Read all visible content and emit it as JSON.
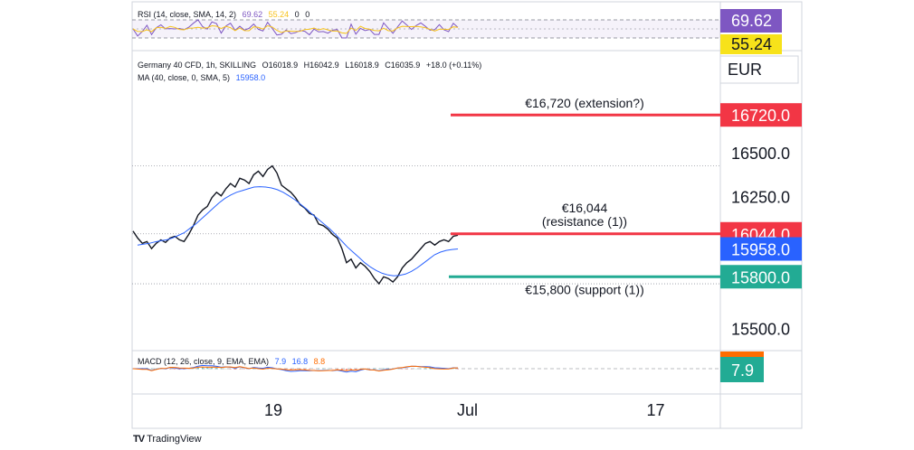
{
  "symbol_legend": {
    "symbol": "Germany 40 CFD, 1h, SKILLING",
    "o": "O16018.9",
    "h": "H16042.9",
    "l": "L16018.9",
    "c": "C16035.9",
    "chg": "+18.0 (+0.11%)",
    "ma": "MA (40, close, 0, SMA, 5)",
    "ma_val": "15958.0"
  },
  "rsi_pane": {
    "legend": "RSI (14, close, SMA, 14, 2)",
    "v1": "69.62",
    "v2": "55.24",
    "v3": "0",
    "v4": "0",
    "badge1": "69.62",
    "badge2": "55.24"
  },
  "macd_pane": {
    "legend": "MACD (12, 26, close, 9, EMA, EMA)",
    "v1": "7.9",
    "v2": "16.8",
    "v3": "8.8",
    "badge": "7.9"
  },
  "currency": "EUR",
  "brand": "TradingView",
  "brand_mark": "TV",
  "colors": {
    "up": "#131722",
    "ma": "#2962ff",
    "resistance": "#f23645",
    "support": "#22ab94",
    "rsi": "#7e57c2",
    "rsi_ma": "#f7e21a",
    "macd": "#2962ff",
    "signal": "#ff6d00"
  },
  "chart_data": {
    "type": "line",
    "title": "Germany 40 CFD, 1h, SKILLING",
    "ylim": [
      15380,
      16870
    ],
    "y_ticks": [
      {
        "value": 16500,
        "label": "16500.0"
      },
      {
        "value": 16250,
        "label": "16250.0"
      },
      {
        "value": 15500,
        "label": "15500.0"
      }
    ],
    "x_ticks": [
      {
        "label": "19",
        "pos": 0.24
      },
      {
        "label": "Jul",
        "pos": 0.57
      },
      {
        "label": "17",
        "pos": 0.89
      }
    ],
    "series": [
      {
        "name": "Germany 40 CFD",
        "role": "price",
        "y": [
          16060,
          16020,
          15990,
          16000,
          15960,
          15990,
          16010,
          15995,
          16020,
          16030,
          16010,
          16000,
          16040,
          16090,
          16150,
          16180,
          16200,
          16250,
          16280,
          16260,
          16300,
          16330,
          16310,
          16360,
          16350,
          16330,
          16380,
          16400,
          16370,
          16410,
          16430,
          16390,
          16320,
          16300,
          16280,
          16250,
          16210,
          16190,
          16160,
          16150,
          16100,
          16090,
          16070,
          16040,
          16020,
          15960,
          15880,
          15900,
          15850,
          15880,
          15860,
          15830,
          15790,
          15760,
          15800,
          15790,
          15770,
          15800,
          15850,
          15880,
          15900,
          15930,
          15960,
          15990,
          16000,
          15980,
          16000,
          16010,
          16000,
          16030,
          16036
        ]
      },
      {
        "name": "MA",
        "role": "ma",
        "y": [
          15980,
          15985,
          15990,
          15998,
          16005,
          16010,
          16020,
          16035,
          16050,
          16075,
          16100,
          16130,
          16160,
          16190,
          16220,
          16245,
          16265,
          16280,
          16290,
          16300,
          16310,
          16312,
          16310,
          16305,
          16295,
          16280,
          16260,
          16238,
          16212,
          16185,
          16155,
          16128,
          16100,
          16072,
          16040,
          16005,
          15970,
          15940,
          15910,
          15880,
          15855,
          15835,
          15820,
          15810,
          15805,
          15808,
          15815,
          15830,
          15850,
          15875,
          15900,
          15925,
          15940,
          15950,
          15955,
          15958
        ]
      }
    ],
    "levels": [
      {
        "value": 16720,
        "label": "€16,720 (extension?)",
        "badge": "16720.0",
        "color": "#f23645"
      },
      {
        "value": 16044,
        "label": "€16,044",
        "label2": "(resistance (1))",
        "badge": "16044.0",
        "color": "#f23645"
      },
      {
        "value": 15958,
        "badge": "15958.0",
        "color": "#2962ff"
      },
      {
        "value": 15800,
        "label": "€15,800 (support (1))",
        "badge": "15800.0",
        "color": "#22ab94"
      }
    ],
    "reference_lines": [
      16430,
      16044,
      15760
    ]
  }
}
